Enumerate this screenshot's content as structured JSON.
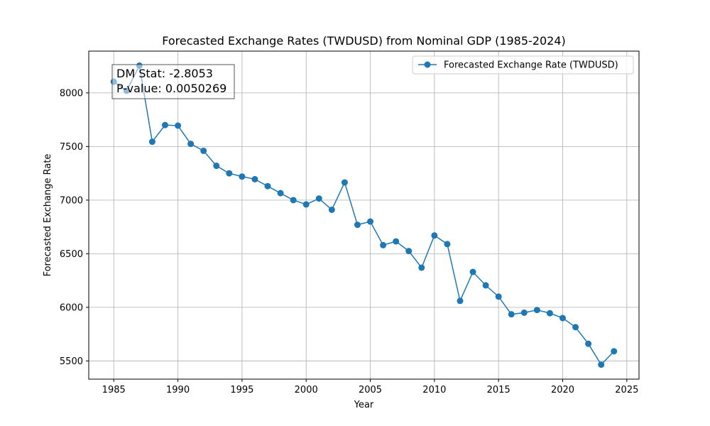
{
  "chart_data": {
    "type": "line",
    "title": "Forecasted Exchange Rates (TWDUSD) from Nominal GDP (1985-2024)",
    "xlabel": "Year",
    "ylabel": "Forecasted Exchange Rate",
    "xlim": [
      1983.05,
      2025.95
    ],
    "ylim": [
      5330,
      8390
    ],
    "xticks": [
      1985,
      1990,
      1995,
      2000,
      2005,
      2010,
      2015,
      2020,
      2025
    ],
    "yticks": [
      5500,
      6000,
      6500,
      7000,
      7500,
      8000
    ],
    "grid": true,
    "legend_position": "top-right",
    "series": [
      {
        "name": "Forecasted Exchange Rate (TWDUSD)",
        "color": "#1f77b4",
        "x": [
          1985,
          1986,
          1987,
          1988,
          1989,
          1990,
          1991,
          1992,
          1993,
          1994,
          1995,
          1996,
          1997,
          1998,
          1999,
          2000,
          2001,
          2002,
          2003,
          2004,
          2005,
          2006,
          2007,
          2008,
          2009,
          2010,
          2011,
          2012,
          2013,
          2014,
          2015,
          2016,
          2017,
          2018,
          2019,
          2020,
          2021,
          2022,
          2023,
          2024
        ],
        "values": [
          8105,
          8020,
          8255,
          7545,
          7700,
          7695,
          7525,
          7460,
          7320,
          7250,
          7220,
          7195,
          7130,
          7065,
          7000,
          6960,
          7015,
          6910,
          7165,
          6770,
          6800,
          6580,
          6615,
          6525,
          6370,
          6670,
          6590,
          6060,
          6330,
          6205,
          6100,
          5935,
          5950,
          5975,
          5945,
          5900,
          5815,
          5660,
          5465,
          5590
        ]
      }
    ],
    "annotation": {
      "line1": "DM Stat: -2.8053",
      "line2": "P-value: 0.0050269"
    }
  }
}
